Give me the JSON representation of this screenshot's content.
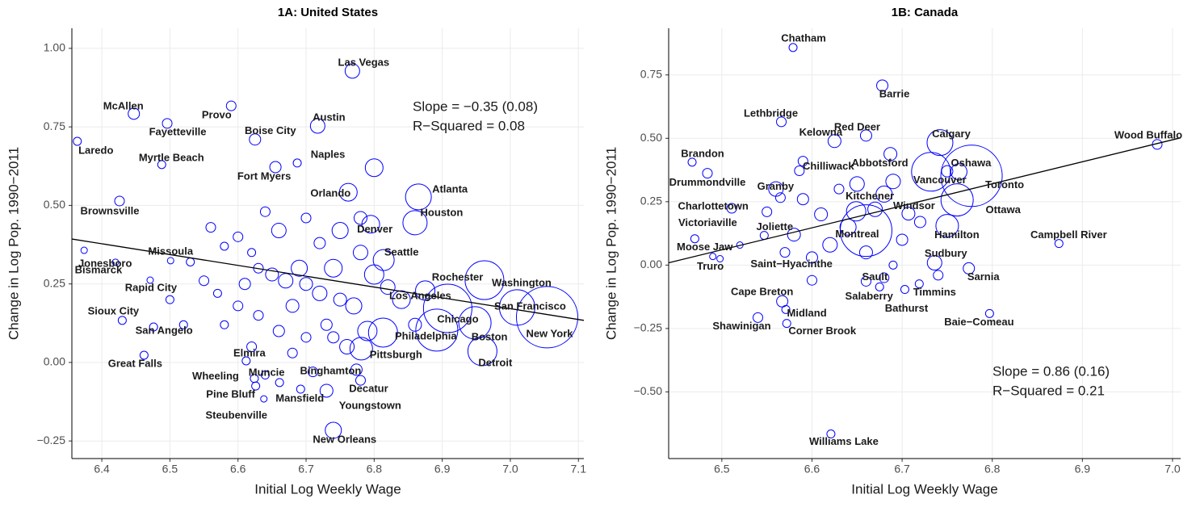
{
  "chart_data": [
    {
      "type": "scatter",
      "title": "1A: United States",
      "x_label": "Initial Log Weekly Wage",
      "y_label": "Change in Log Pop. 1990−2011",
      "xlim": [
        6.356,
        7.108
      ],
      "ylim": [
        -0.306,
        1.064
      ],
      "xticks": [
        6.4,
        6.5,
        6.6,
        6.7,
        6.8,
        6.9,
        {
          "value": 7,
          "label": "7.0"
        },
        7.1
      ],
      "yticks": [
        {
          "value": -0.25,
          "label": "−0.25"
        },
        {
          "value": 0,
          "label": "0.00"
        },
        {
          "value": 0.25,
          "label": "0.25"
        },
        {
          "value": 0.5,
          "label": "0.50"
        },
        {
          "value": 0.75,
          "label": "0.75"
        },
        {
          "value": 1,
          "label": "1.00"
        }
      ],
      "grid": true,
      "color": "#0000ff",
      "annotations": [
        "Slope = −0.35 (0.08)",
        "R−Squared = 0.08"
      ],
      "fit_line": {
        "x": [
          6.356,
          7.108
        ],
        "y": [
          0.393,
          0.134
        ]
      },
      "labels": [
        "Las Vegas",
        "McAllen",
        "Provo",
        "Laredo",
        "Fayetteville",
        "Austin",
        "Boise City",
        "Myrtle Beach",
        "Naples",
        "Fort Myers",
        "Orlando",
        "Atlanta",
        "Brownsville",
        "Houston",
        "Denver",
        "Seattle",
        "Jonesboro",
        "Missoula",
        "Bismarck",
        "Rochester",
        "Rapid City",
        "Washington",
        "Los Angeles",
        "San Francisco",
        "Sioux City",
        "Chicago",
        "San Angelo",
        "Philadelphia",
        "Boston",
        "New York",
        "Detroit",
        "Great Falls",
        "Pittsburgh",
        "Elmira",
        "Wheeling",
        "Muncie",
        "Binghamton",
        "Pine Bluff",
        "Decatur",
        "Mansfield",
        "Youngstown",
        "Steubenville",
        "New Orleans",
        null,
        null,
        null,
        null,
        null,
        null,
        null,
        null,
        null,
        null,
        null,
        null,
        null,
        null,
        null,
        null,
        null,
        null,
        null,
        null,
        null,
        null,
        null,
        null,
        null,
        null,
        null,
        null,
        null,
        null,
        null,
        null,
        null,
        null,
        null,
        null,
        null,
        null,
        null,
        null,
        null,
        null,
        null,
        null,
        null
      ],
      "x": [
        6.768,
        6.447,
        6.59,
        6.364,
        6.496,
        6.717,
        6.625,
        6.488,
        6.687,
        6.655,
        6.762,
        6.865,
        6.426,
        6.86,
        6.795,
        6.814,
        6.374,
        6.501,
        6.42,
        6.875,
        6.471,
        6.962,
        6.908,
        7.01,
        6.43,
        6.892,
        6.476,
        6.813,
        6.948,
        7.054,
        6.959,
        6.462,
        6.781,
        6.612,
        6.624,
        6.661,
        6.774,
        6.626,
        6.78,
        6.692,
        6.73,
        6.638,
        6.74,
        6.56,
        6.58,
        6.6,
        6.62,
        6.63,
        6.65,
        6.67,
        6.69,
        6.7,
        6.72,
        6.74,
        6.75,
        6.77,
        6.78,
        6.8,
        6.82,
        6.79,
        6.76,
        6.73,
        6.7,
        6.66,
        6.63,
        6.6,
        6.57,
        6.55,
        6.53,
        6.58,
        6.62,
        6.68,
        6.72,
        6.66,
        6.7,
        6.8,
        6.84,
        6.86,
        6.71,
        6.75,
        6.61,
        6.52,
        6.5,
        6.64,
        6.78,
        6.68,
        6.74,
        6.64
      ],
      "y": [
        0.928,
        0.792,
        0.817,
        0.704,
        0.761,
        0.753,
        0.71,
        0.63,
        0.635,
        0.622,
        0.542,
        0.527,
        0.514,
        0.445,
        0.44,
        0.326,
        0.357,
        0.324,
        0.319,
        0.229,
        0.262,
        0.262,
        0.172,
        0.175,
        0.134,
        0.103,
        0.113,
        0.095,
        0.126,
        0.144,
        0.036,
        0.023,
        0.044,
        0.005,
        -0.051,
        -0.064,
        -0.023,
        -0.075,
        -0.057,
        -0.085,
        -0.09,
        -0.116,
        -0.216,
        0.43,
        0.37,
        0.4,
        0.35,
        0.3,
        0.28,
        0.26,
        0.3,
        0.25,
        0.22,
        0.3,
        0.2,
        0.18,
        0.35,
        0.28,
        0.24,
        0.1,
        0.05,
        0.12,
        0.08,
        0.1,
        0.15,
        0.18,
        0.22,
        0.26,
        0.32,
        0.12,
        0.05,
        0.03,
        0.38,
        0.42,
        0.46,
        0.62,
        0.2,
        0.12,
        -0.03,
        0.42,
        0.25,
        0.12,
        0.2,
        0.48,
        0.46,
        0.18,
        0.08,
        -0.04
      ],
      "sizes": [
        9,
        7,
        6,
        5,
        6,
        9,
        7,
        5,
        5,
        7,
        11,
        16,
        6,
        15,
        11,
        13,
        4,
        4,
        4,
        12,
        4,
        24,
        30,
        22,
        5,
        26,
        5,
        18,
        20,
        38,
        18,
        5,
        14,
        5,
        5,
        5,
        7,
        5,
        6,
        5,
        8,
        4,
        10,
        6,
        5,
        6,
        5,
        6,
        8,
        9,
        10,
        8,
        9,
        11,
        8,
        10,
        9,
        12,
        9,
        12,
        9,
        7,
        6,
        7,
        6,
        6,
        5,
        6,
        5,
        5,
        6,
        6,
        7,
        9,
        6,
        11,
        11,
        8,
        6,
        10,
        7,
        5,
        5,
        6,
        8,
        8,
        7,
        5
      ]
    },
    {
      "type": "scatter",
      "title": "1B: Canada",
      "x_label": "Initial Log Weekly Wage",
      "y_label": "Change in Log Pop. 1990−2011",
      "xlim": [
        6.441,
        7.009
      ],
      "ylim": [
        -0.763,
        0.934
      ],
      "xticks": [
        6.5,
        6.6,
        6.7,
        6.8,
        6.9,
        {
          "value": 7,
          "label": "7.0"
        }
      ],
      "yticks": [
        {
          "value": -0.5,
          "label": "−0.50"
        },
        {
          "value": -0.25,
          "label": "−0.25"
        },
        {
          "value": 0,
          "label": "0.00"
        },
        {
          "value": 0.25,
          "label": "0.25"
        },
        {
          "value": 0.5,
          "label": "0.50"
        },
        {
          "value": 0.75,
          "label": "0.75"
        }
      ],
      "grid": true,
      "color": "#0000ff",
      "annotations": [
        "Slope = 0.86 (0.16)",
        "R−Squared = 0.21"
      ],
      "fit_line": {
        "x": [
          6.441,
          7.009
        ],
        "y": [
          0.009,
          0.502
        ]
      },
      "labels": [
        "Chatham",
        "Barrie",
        "Lethbridge",
        "Wood Buffalo",
        "Red Deer",
        "Kelowna",
        "Calgary",
        "Brandon",
        "Abbotsford",
        "Chilliwack",
        "Drummondville",
        "Oshawa",
        "Vancouver",
        "Toronto",
        "Charlottetown",
        "Granby",
        "Kitchener",
        "Victoriaville",
        "Windsor",
        "Ottawa",
        "Joliette",
        "Moose Jaw",
        "Montreal",
        "Hamilton",
        "Campbell River",
        "Truro",
        "Saint−Hyacinthe",
        "Sudbury",
        "Sarnia",
        "Cape Breton",
        "Sault",
        "Timmins",
        "Salaberry",
        "Midland",
        "Bathurst",
        "Baie−Comeau",
        "Shawinigan",
        "Corner Brook",
        "Williams Lake",
        null,
        null,
        null,
        null,
        null,
        null,
        null,
        null,
        null,
        null,
        null,
        null,
        null,
        null,
        null,
        null,
        null,
        null,
        null,
        null,
        null,
        null,
        null
      ],
      "x": [
        6.579,
        6.678,
        6.566,
        6.983,
        6.66,
        6.625,
        6.742,
        6.467,
        6.687,
        6.586,
        6.484,
        6.763,
        6.732,
        6.777,
        6.511,
        6.565,
        6.649,
        6.47,
        6.707,
        6.761,
        6.547,
        6.49,
        6.66,
        6.75,
        6.874,
        6.498,
        6.52,
        6.736,
        6.774,
        6.567,
        6.66,
        6.719,
        6.675,
        6.571,
        6.703,
        6.797,
        6.54,
        6.572,
        6.621,
        6.56,
        6.59,
        6.61,
        6.63,
        6.65,
        6.68,
        6.69,
        6.64,
        6.62,
        6.6,
        6.57,
        6.58,
        6.66,
        6.7,
        6.68,
        6.6,
        6.69,
        6.74,
        6.72,
        6.55,
        6.59,
        6.67,
        6.75
      ],
      "y": [
        0.858,
        0.708,
        0.565,
        0.476,
        0.511,
        0.489,
        0.483,
        0.406,
        0.438,
        0.372,
        0.362,
        0.368,
        0.368,
        0.352,
        0.224,
        0.266,
        0.212,
        0.104,
        0.203,
        0.257,
        0.117,
        0.034,
        0.136,
        0.155,
        0.085,
        0.025,
        0.079,
        0.009,
        -0.013,
        -0.143,
        -0.064,
        -0.074,
        -0.086,
        -0.175,
        -0.096,
        -0.191,
        -0.207,
        -0.23,
        -0.666,
        0.3,
        0.26,
        0.2,
        0.3,
        0.32,
        0.28,
        0.33,
        0.15,
        0.08,
        0.03,
        0.05,
        0.12,
        0.05,
        0.1,
        -0.05,
        -0.06,
        0,
        -0.04,
        0.17,
        0.21,
        0.41,
        0.22,
        0.37
      ],
      "sizes": [
        5,
        7,
        6,
        6,
        7,
        8,
        16,
        5,
        8,
        6,
        6,
        10,
        24,
        38,
        6,
        6,
        12,
        5,
        8,
        20,
        5,
        4,
        32,
        14,
        5,
        4,
        4,
        9,
        7,
        7,
        6,
        5,
        5,
        5,
        5,
        5,
        6,
        5,
        5,
        9,
        7,
        8,
        6,
        9,
        10,
        9,
        10,
        9,
        7,
        6,
        8,
        8,
        7,
        6,
        6,
        5,
        6,
        7,
        6,
        6,
        9,
        7
      ]
    }
  ]
}
